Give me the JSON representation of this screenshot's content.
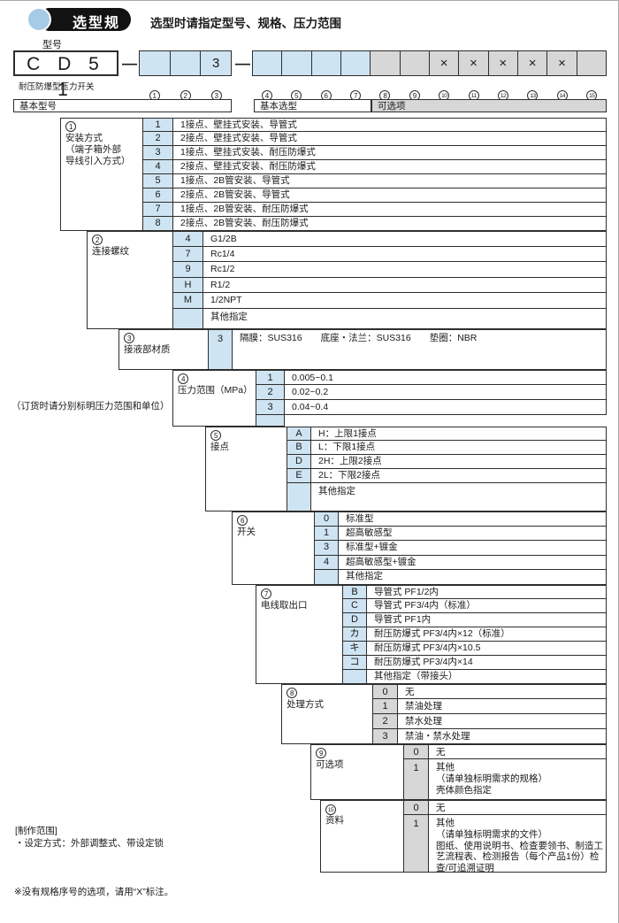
{
  "header": {
    "badge_label": "选型规格",
    "subtitle": "选型时请指定型号、规格、压力范围"
  },
  "model": {
    "label": "型号",
    "code": "C D 5 1",
    "caption": "耐压防爆型压力开关",
    "dash": "—",
    "basic_cells": [
      "",
      "",
      "3"
    ],
    "option_cells": [
      "",
      "",
      "",
      "",
      "",
      "",
      "×",
      "×",
      "×",
      "×",
      "×",
      ""
    ],
    "basic_cell_numbers": [
      "1",
      "2",
      "3"
    ],
    "option_cell_numbers": [
      "4",
      "5",
      "6",
      "7",
      "8",
      "9",
      "10",
      "11",
      "12",
      "13",
      "14",
      "15"
    ]
  },
  "column_headers": {
    "basic_model": "基本型号",
    "basic_select": "基本选型",
    "optional": "可选项"
  },
  "sections": [
    {
      "num": "1",
      "label": "安装方式\n（端子箱外部\n导线引入方式）",
      "color": "blue",
      "rows": [
        {
          "code": "1",
          "desc": "1接点、壁挂式安装、导管式"
        },
        {
          "code": "2",
          "desc": "2接点、壁挂式安装、导管式"
        },
        {
          "code": "3",
          "desc": "1接点、壁挂式安装、耐压防爆式"
        },
        {
          "code": "4",
          "desc": "2接点、壁挂式安装、耐压防爆式"
        },
        {
          "code": "5",
          "desc": "1接点、2B管安装、导管式"
        },
        {
          "code": "6",
          "desc": "2接点、2B管安装、导管式"
        },
        {
          "code": "7",
          "desc": "1接点、2B管安装、耐压防爆式"
        },
        {
          "code": "8",
          "desc": "2接点、2B管安装、耐压防爆式"
        }
      ]
    },
    {
      "num": "2",
      "label": "连接螺纹",
      "color": "blue",
      "rows": [
        {
          "code": "4",
          "desc": "G1/2B"
        },
        {
          "code": "7",
          "desc": "Rc1/4"
        },
        {
          "code": "9",
          "desc": "Rc1/2"
        },
        {
          "code": "H",
          "desc": "R1/2"
        },
        {
          "code": "M",
          "desc": "1/2NPT"
        },
        {
          "code": "",
          "desc": "其他指定",
          "tall": true
        }
      ]
    },
    {
      "num": "3",
      "label": "接液部材质",
      "color": "blue",
      "rows": [
        {
          "code": "3",
          "desc": "隔膜：SUS316　　底座・法兰：SUS316　　垫圈：NBR",
          "tall": true
        }
      ]
    },
    {
      "num": "4",
      "label": "压力范围（MPa）",
      "color": "blue",
      "rows": [
        {
          "code": "1",
          "desc": "0.005~0.1"
        },
        {
          "code": "2",
          "desc": "0.02~0.2"
        },
        {
          "code": "3",
          "desc": "0.04~0.4"
        }
      ]
    },
    {
      "num": "5",
      "label": "接点",
      "color": "blue",
      "rows": [
        {
          "code": "A",
          "desc": "H：上限1接点"
        },
        {
          "code": "B",
          "desc": "L：下限1接点"
        },
        {
          "code": "D",
          "desc": "2H：上限2接点"
        },
        {
          "code": "E",
          "desc": "2L：下限2接点"
        },
        {
          "code": "",
          "desc": "其他指定",
          "tall": true
        }
      ]
    },
    {
      "num": "6",
      "label": "开关",
      "color": "blue",
      "rows": [
        {
          "code": "0",
          "desc": "标准型"
        },
        {
          "code": "1",
          "desc": "超高敏感型"
        },
        {
          "code": "3",
          "desc": "标准型+镀金"
        },
        {
          "code": "4",
          "desc": "超高敏感型+镀金"
        },
        {
          "code": "",
          "desc": "其他指定"
        }
      ]
    },
    {
      "num": "7",
      "label": "电线取出口",
      "color": "blue",
      "rows": [
        {
          "code": "B",
          "desc": "导管式  PF1/2内"
        },
        {
          "code": "C",
          "desc": "导管式  PF3/4内（标准）"
        },
        {
          "code": "D",
          "desc": "导管式  PF1内"
        },
        {
          "code": "カ",
          "desc": "耐压防爆式  PF3/4内×12（标准）"
        },
        {
          "code": "キ",
          "desc": "耐压防爆式  PF3/4内×10.5"
        },
        {
          "code": "コ",
          "desc": "耐压防爆式  PF3/4内×14"
        },
        {
          "code": "",
          "desc": "其他指定（带接头）"
        }
      ]
    },
    {
      "num": "8",
      "label": "处理方式",
      "color": "gray",
      "rows": [
        {
          "code": "0",
          "desc": "无"
        },
        {
          "code": "1",
          "desc": "禁油处理"
        },
        {
          "code": "2",
          "desc": "禁水处理"
        },
        {
          "code": "3",
          "desc": "禁油・禁水处理"
        }
      ]
    },
    {
      "num": "9",
      "label": "可选项",
      "color": "gray",
      "rows": [
        {
          "code": "0",
          "desc": "无"
        },
        {
          "code": "1",
          "desc": "其他\n（请单独标明需求的规格）\n壳体颜色指定",
          "tall": true
        }
      ]
    },
    {
      "num": "15",
      "label": "资料",
      "color": "gray",
      "rows": [
        {
          "code": "0",
          "desc": "无"
        },
        {
          "code": "1",
          "desc": "其他\n（请单独标明需求的文件）\n图纸、使用说明书、检查要领书、制造工艺流程表、检测报告（每个产品1份）检查/可追溯证明",
          "tall": true
        }
      ]
    }
  ],
  "notes": {
    "pressure": "（订货时请分别标明压力范围和单位）",
    "scope_title": "[制作范围]",
    "scope_line": "・设定方式：外部调整式、带设定锁",
    "x_mark": "※没有规格序号的选项，请用“X”标注。"
  },
  "colors": {
    "blue_cell": "#cfe4f2",
    "gray_cell": "#d7d7d7",
    "badge_black": "#121212",
    "badge_blue": "#a6cbe7",
    "border": "#2e2e2e"
  }
}
